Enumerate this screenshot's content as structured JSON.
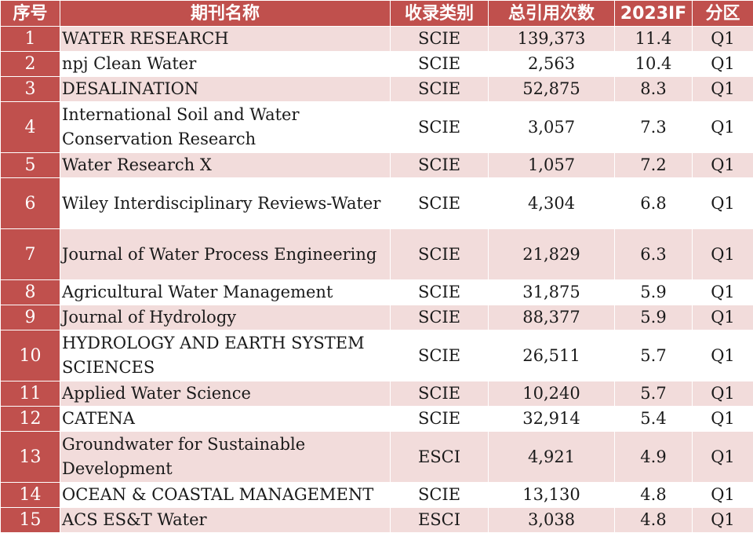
{
  "headers": [
    "序号",
    "期刊名称",
    "收录类别",
    "总引用次数",
    "2023IF",
    "分区"
  ],
  "rows": [
    {
      "idx": "1",
      "name": "WATER RESEARCH",
      "type": "SCIE",
      "citations": "139,373",
      "if": "11.4",
      "quartile": "Q1"
    },
    {
      "idx": "2",
      "name": "npj Clean Water",
      "type": "SCIE",
      "citations": "2,563",
      "if": "10.4",
      "quartile": "Q1"
    },
    {
      "idx": "3",
      "name": "DESALINATION",
      "type": "SCIE",
      "citations": "52,875",
      "if": "8.3",
      "quartile": "Q1"
    },
    {
      "idx": "4",
      "name": "International Soil and Water Conservation Research",
      "type": "SCIE",
      "citations": "3,057",
      "if": "7.3",
      "quartile": "Q1"
    },
    {
      "idx": "5",
      "name": "Water Research X",
      "type": "SCIE",
      "citations": "1,057",
      "if": "7.2",
      "quartile": "Q1"
    },
    {
      "idx": "6",
      "name": "Wiley Interdisciplinary Reviews-Water",
      "type": "SCIE",
      "citations": "4,304",
      "if": "6.8",
      "quartile": "Q1"
    },
    {
      "idx": "7",
      "name": "Journal of Water Process Engineering",
      "type": "SCIE",
      "citations": "21,829",
      "if": "6.3",
      "quartile": "Q1"
    },
    {
      "idx": "8",
      "name": "Agricultural Water Management",
      "type": "SCIE",
      "citations": "31,875",
      "if": "5.9",
      "quartile": "Q1"
    },
    {
      "idx": "9",
      "name": "Journal of Hydrology",
      "type": "SCIE",
      "citations": "88,377",
      "if": "5.9",
      "quartile": "Q1"
    },
    {
      "idx": "10",
      "name": "HYDROLOGY AND EARTH SYSTEM SCIENCES",
      "type": "SCIE",
      "citations": "26,511",
      "if": "5.7",
      "quartile": "Q1"
    },
    {
      "idx": "11",
      "name": "Applied Water Science",
      "type": "SCIE",
      "citations": "10,240",
      "if": "5.7",
      "quartile": "Q1"
    },
    {
      "idx": "12",
      "name": "CATENA",
      "type": "SCIE",
      "citations": "32,914",
      "if": "5.4",
      "quartile": "Q1"
    },
    {
      "idx": "13",
      "name": "Groundwater for Sustainable Development",
      "type": "ESCI",
      "citations": "4,921",
      "if": "4.9",
      "quartile": "Q1"
    },
    {
      "idx": "14",
      "name": "OCEAN & COASTAL MANAGEMENT",
      "type": "SCIE",
      "citations": "13,130",
      "if": "4.8",
      "quartile": "Q1"
    },
    {
      "idx": "15",
      "name": "ACS ES&T Water",
      "type": "ESCI",
      "citations": "3,038",
      "if": "4.8",
      "quartile": "Q1"
    }
  ]
}
